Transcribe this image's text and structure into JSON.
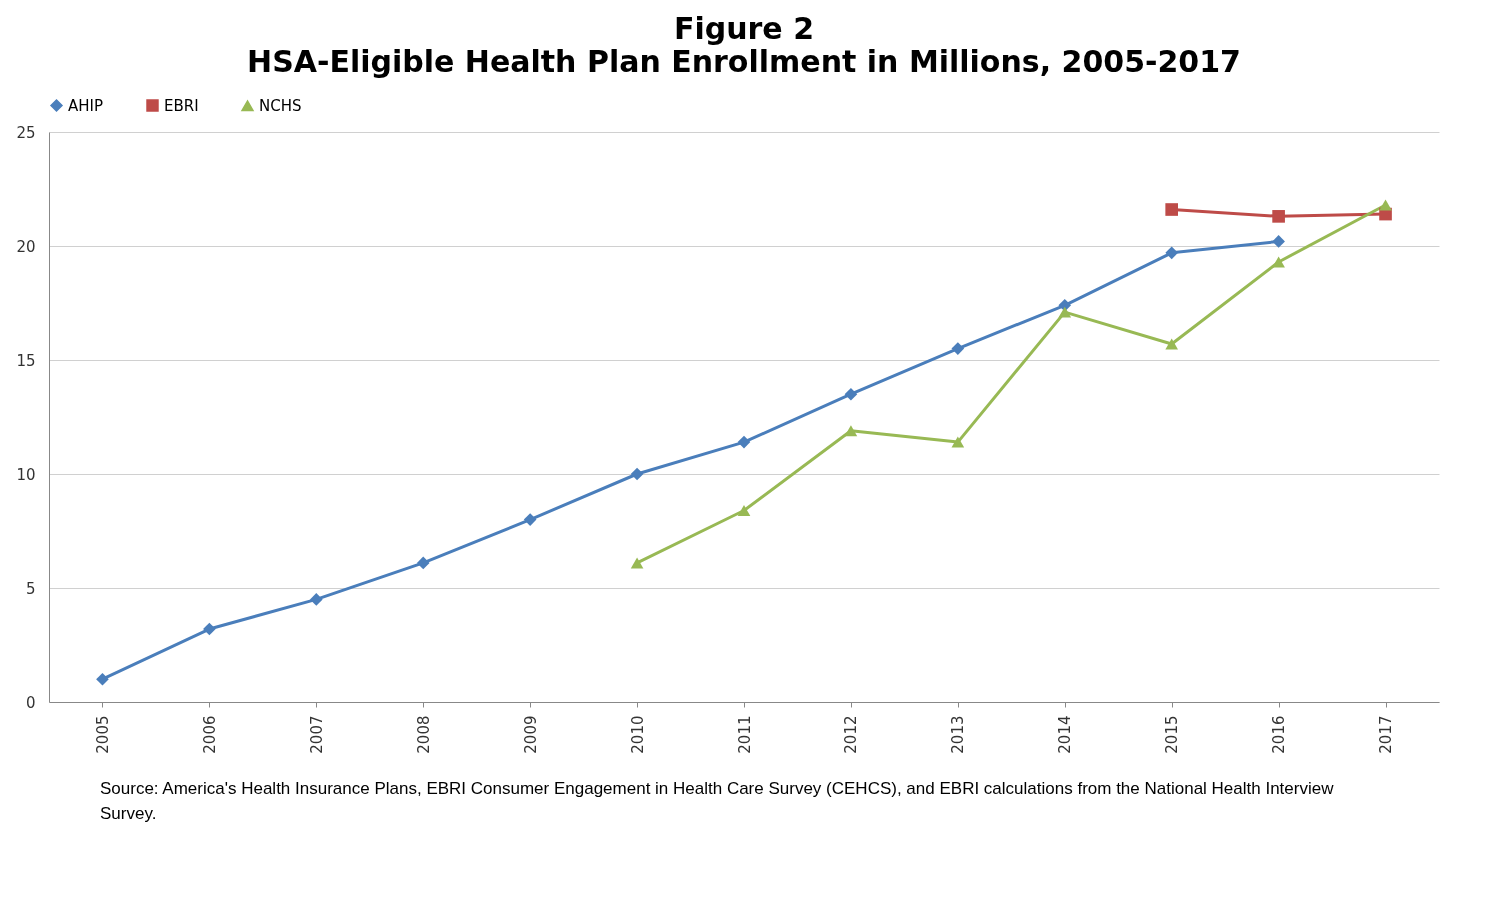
{
  "chart_data": {
    "type": "line",
    "title": "Figure 2",
    "subtitle": "HSA-Eligible Health Plan Enrollment in Millions, 2005-2017",
    "categories": [
      "2005",
      "2006",
      "2007",
      "2008",
      "2009",
      "2010",
      "2011",
      "2012",
      "2013",
      "2014",
      "2015",
      "2016",
      "2017"
    ],
    "series": [
      {
        "name": "AHIP",
        "color": "#4a7ebb",
        "marker": "diamond",
        "values": [
          1.0,
          3.2,
          4.5,
          6.1,
          8.0,
          10.0,
          11.4,
          13.5,
          15.5,
          17.4,
          19.7,
          20.2,
          null
        ]
      },
      {
        "name": "EBRI",
        "color": "#be4b48",
        "marker": "square",
        "values": [
          null,
          null,
          null,
          null,
          null,
          null,
          null,
          null,
          null,
          null,
          21.6,
          21.3,
          21.4
        ]
      },
      {
        "name": "NCHS",
        "color": "#98b954",
        "marker": "triangle",
        "values": [
          null,
          null,
          null,
          null,
          null,
          6.1,
          8.4,
          11.9,
          11.4,
          17.1,
          15.7,
          19.3,
          21.8
        ]
      }
    ],
    "ylim": [
      0,
      25
    ],
    "yticks": [
      0,
      5,
      10,
      15,
      20,
      25
    ],
    "grid": "y",
    "legend": "top",
    "annotations": [
      "Source: America's Health Insurance Plans, EBRI Consumer Engagement in Health Care Survey (CEHCS), and EBRI calculations from the National Health Interview Survey."
    ]
  }
}
